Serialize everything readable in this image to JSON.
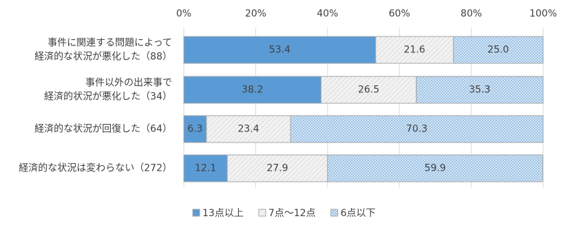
{
  "chart_data": {
    "type": "stacked-bar-horizontal",
    "categories": [
      "事件に関連する問題によって\n経済的な状況が悪化した（88）",
      "事件以外の出来事で\n経済的状況が悪化した（34）",
      "経済的な状況が回復した（64）",
      "経済的な状況は変わらない（272）"
    ],
    "series": [
      {
        "name": "13点以上",
        "color": "#5b9bd5",
        "pattern": "solid",
        "values": [
          53.4,
          38.2,
          6.3,
          12.1
        ]
      },
      {
        "name": "7点～12点",
        "color": "#f2f2f2",
        "pattern": "diagonal",
        "values": [
          21.6,
          26.5,
          23.4,
          27.9
        ]
      },
      {
        "name": "6点以下",
        "color": "#9dc3e6",
        "pattern": "dots",
        "values": [
          25.0,
          35.3,
          70.3,
          59.9
        ],
        "value_labels": [
          "25.0",
          "35.3",
          "70.3",
          "59.9"
        ]
      }
    ],
    "xlim": [
      0,
      100
    ],
    "xticks": [
      {
        "value": 0,
        "label": "0%"
      },
      {
        "value": 20,
        "label": "20%"
      },
      {
        "value": 40,
        "label": "40%"
      },
      {
        "value": 60,
        "label": "60%"
      },
      {
        "value": 80,
        "label": "80%"
      },
      {
        "value": 100,
        "label": "100%"
      }
    ],
    "grid": true,
    "legend": "bottom"
  }
}
